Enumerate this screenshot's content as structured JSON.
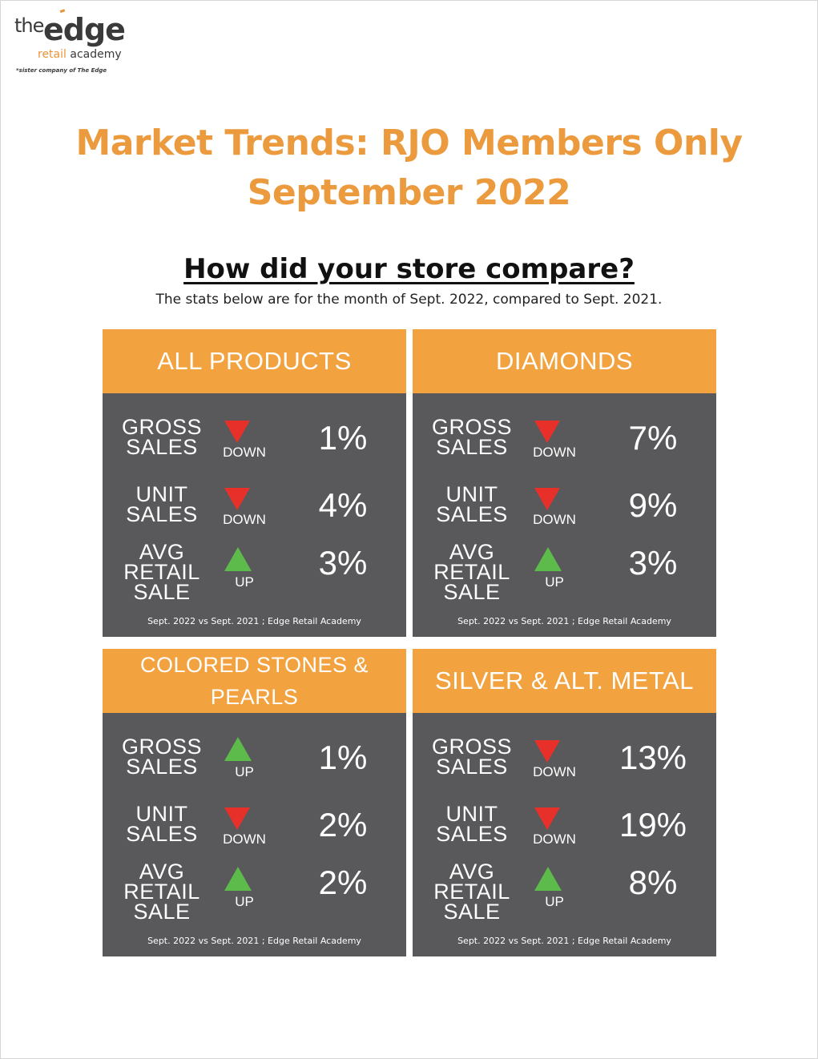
{
  "logo": {
    "the": "the",
    "edge": "edge",
    "retail": "retail",
    "academy": "academy",
    "note": "*sister company of The Edge"
  },
  "title": {
    "line1": "Market Trends: RJO Members Only",
    "line2": "September 2022"
  },
  "subhead": "How did your store compare?",
  "caption": "The stats below are for the month of Sept. 2022, compared to Sept. 2021.",
  "source_note": "Sept. 2022 vs Sept. 2021 ; Edge Retail Academy",
  "colors": {
    "title": "#ec9a3e",
    "header": "#f2a23f",
    "panel": "#59595b",
    "down": "#e8302a",
    "up": "#5cbb4a"
  },
  "cards": [
    {
      "title": "ALL PRODUCTS",
      "rows": [
        {
          "label1": "GROSS",
          "label2": "SALES",
          "label3": "",
          "direction": "DOWN",
          "arrow": "down-arrow-icon",
          "percent": "1%"
        },
        {
          "label1": "UNIT",
          "label2": "SALES",
          "label3": "",
          "direction": "DOWN",
          "arrow": "down-arrow-icon",
          "percent": "4%"
        },
        {
          "label1": "AVG",
          "label2": "RETAIL",
          "label3": "SALE",
          "direction": "UP",
          "arrow": "up-arrow-icon",
          "percent": "3%"
        }
      ]
    },
    {
      "title": "DIAMONDS",
      "rows": [
        {
          "label1": "GROSS",
          "label2": "SALES",
          "label3": "",
          "direction": "DOWN",
          "arrow": "down-arrow-icon",
          "percent": "7%"
        },
        {
          "label1": "UNIT",
          "label2": "SALES",
          "label3": "",
          "direction": "DOWN",
          "arrow": "down-arrow-icon",
          "percent": "9%"
        },
        {
          "label1": "AVG",
          "label2": "RETAIL",
          "label3": "SALE",
          "direction": "UP",
          "arrow": "up-arrow-icon",
          "percent": "3%"
        }
      ]
    },
    {
      "title_line1": "COLORED STONES &",
      "title_line2": "PEARLS",
      "rows": [
        {
          "label1": "GROSS",
          "label2": "SALES",
          "label3": "",
          "direction": "UP",
          "arrow": "up-arrow-icon",
          "percent": "1%"
        },
        {
          "label1": "UNIT",
          "label2": "SALES",
          "label3": "",
          "direction": "DOWN",
          "arrow": "down-arrow-icon",
          "percent": "2%"
        },
        {
          "label1": "AVG",
          "label2": "RETAIL",
          "label3": "SALE",
          "direction": "UP",
          "arrow": "up-arrow-icon",
          "percent": "2%"
        }
      ]
    },
    {
      "title": "SILVER & ALT. METAL",
      "rows": [
        {
          "label1": "GROSS",
          "label2": "SALES",
          "label3": "",
          "direction": "DOWN",
          "arrow": "down-arrow-icon",
          "percent": "13%"
        },
        {
          "label1": "UNIT",
          "label2": "SALES",
          "label3": "",
          "direction": "DOWN",
          "arrow": "down-arrow-icon",
          "percent": "19%"
        },
        {
          "label1": "AVG",
          "label2": "RETAIL",
          "label3": "SALE",
          "direction": "UP",
          "arrow": "up-arrow-icon",
          "percent": "8%"
        }
      ]
    }
  ]
}
